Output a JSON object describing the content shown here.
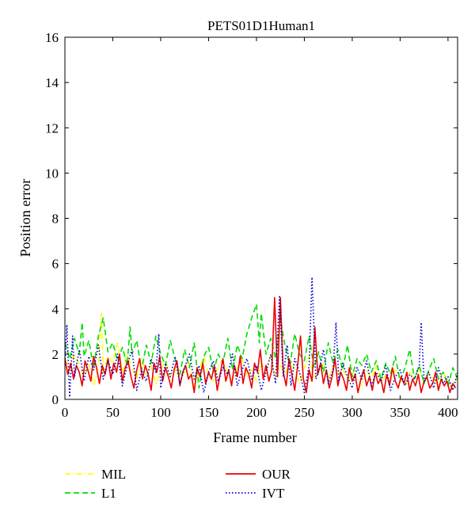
{
  "chart_data": {
    "type": "line",
    "title": "PETS01D1Human1",
    "xlabel": "Frame number",
    "ylabel": "Position error",
    "xlim": [
      0,
      410
    ],
    "ylim": [
      0,
      16
    ],
    "xticks": [
      0,
      50,
      100,
      150,
      200,
      250,
      300,
      350,
      400
    ],
    "yticks": [
      0,
      2,
      4,
      6,
      8,
      10,
      12,
      14,
      16
    ],
    "grid": false,
    "legend_position": "bottom",
    "series": [
      {
        "name": "MIL",
        "color": "#ffff00",
        "style": "dash-dot",
        "x": [
          0,
          5,
          10,
          15,
          20,
          25,
          30,
          35,
          38,
          40,
          45,
          50,
          55,
          60,
          65,
          70,
          75,
          80,
          85,
          90,
          95,
          100,
          105,
          110,
          115,
          120,
          125,
          130,
          135,
          140,
          145,
          150,
          155,
          160,
          165,
          170,
          175,
          180,
          185,
          190,
          195,
          200,
          205,
          210,
          215,
          220,
          225,
          230,
          235,
          240,
          245,
          250,
          255,
          260,
          265,
          270,
          275,
          280,
          285,
          290,
          295,
          300,
          305,
          310,
          315,
          320,
          325,
          330,
          335,
          340,
          345,
          350,
          355,
          360,
          365,
          370,
          375,
          380,
          385,
          390,
          395,
          400,
          405,
          410
        ],
        "y": [
          1.8,
          1.3,
          2.0,
          1.5,
          1.0,
          1.6,
          0.6,
          1.4,
          3.8,
          1.2,
          1.9,
          1.6,
          2.5,
          1.2,
          2.0,
          1.4,
          0.9,
          1.8,
          1.1,
          1.5,
          0.7,
          1.3,
          1.7,
          1.0,
          1.4,
          0.8,
          1.2,
          1.6,
          0.6,
          1.3,
          1.9,
          1.1,
          0.8,
          1.5,
          1.7,
          1.2,
          0.9,
          1.4,
          1.8,
          1.0,
          1.3,
          0.8,
          1.6,
          1.2,
          2.0,
          0.9,
          1.5,
          1.1,
          1.8,
          1.3,
          0.7,
          1.4,
          1.9,
          1.0,
          1.2,
          1.6,
          0.9,
          1.5,
          1.1,
          1.4,
          0.8,
          1.2,
          1.0,
          0.6,
          1.3,
          0.9,
          1.5,
          0.7,
          1.1,
          0.8,
          1.3,
          1.0,
          0.6,
          1.2,
          0.9,
          1.4,
          0.7,
          1.1,
          0.9,
          0.6,
          1.2,
          0.8,
          0.5,
          1.0
        ]
      },
      {
        "name": "L1",
        "color": "#00dd00",
        "style": "dash",
        "x": [
          0,
          5,
          10,
          15,
          18,
          20,
          25,
          30,
          35,
          40,
          45,
          50,
          55,
          60,
          65,
          68,
          70,
          75,
          80,
          85,
          90,
          95,
          100,
          105,
          110,
          115,
          120,
          125,
          130,
          135,
          140,
          145,
          150,
          155,
          160,
          165,
          170,
          175,
          180,
          185,
          190,
          195,
          200,
          203,
          205,
          210,
          215,
          220,
          225,
          230,
          235,
          240,
          245,
          250,
          255,
          260,
          265,
          270,
          275,
          280,
          285,
          290,
          295,
          300,
          305,
          310,
          315,
          320,
          325,
          330,
          335,
          340,
          345,
          350,
          355,
          360,
          365,
          370,
          375,
          380,
          385,
          390,
          395,
          400,
          405,
          410
        ],
        "y": [
          2.5,
          1.8,
          2.7,
          2.0,
          3.4,
          1.9,
          2.6,
          1.4,
          2.8,
          3.6,
          2.1,
          2.5,
          1.7,
          2.3,
          1.5,
          3.2,
          2.0,
          2.6,
          1.3,
          2.4,
          1.6,
          2.8,
          2.0,
          1.5,
          2.6,
          1.8,
          1.1,
          2.2,
          1.4,
          2.5,
          0.5,
          1.9,
          2.3,
          1.2,
          2.0,
          1.6,
          2.7,
          1.3,
          2.4,
          1.8,
          2.9,
          3.6,
          4.2,
          2.5,
          3.8,
          2.0,
          2.7,
          1.8,
          3.6,
          2.3,
          1.5,
          2.9,
          2.0,
          1.7,
          2.8,
          1.4,
          2.1,
          1.2,
          2.5,
          1.6,
          2.2,
          1.3,
          2.4,
          1.0,
          1.8,
          1.5,
          2.0,
          1.2,
          1.7,
          0.9,
          1.6,
          1.1,
          1.9,
          0.8,
          1.4,
          2.2,
          0.9,
          1.5,
          0.7,
          1.3,
          1.8,
          0.9,
          1.2,
          0.6,
          1.4,
          0.9
        ]
      },
      {
        "name": "OUR",
        "color": "#ee0000",
        "style": "solid",
        "x": [
          0,
          3,
          6,
          9,
          12,
          15,
          18,
          21,
          24,
          27,
          30,
          33,
          36,
          39,
          42,
          45,
          48,
          51,
          54,
          57,
          60,
          63,
          66,
          69,
          72,
          75,
          78,
          81,
          84,
          87,
          90,
          93,
          96,
          99,
          102,
          105,
          108,
          111,
          114,
          117,
          120,
          123,
          126,
          129,
          132,
          135,
          138,
          141,
          144,
          147,
          150,
          153,
          156,
          159,
          162,
          165,
          168,
          171,
          174,
          177,
          180,
          183,
          186,
          189,
          192,
          195,
          198,
          201,
          204,
          207,
          210,
          213,
          216,
          219,
          222,
          225,
          228,
          231,
          234,
          237,
          240,
          243,
          246,
          249,
          252,
          255,
          258,
          261,
          264,
          267,
          270,
          273,
          276,
          279,
          282,
          285,
          288,
          291,
          294,
          297,
          300,
          303,
          306,
          309,
          312,
          315,
          318,
          321,
          324,
          327,
          330,
          333,
          336,
          339,
          342,
          345,
          348,
          351,
          354,
          357,
          360,
          363,
          366,
          369,
          372,
          375,
          378,
          381,
          384,
          387,
          390,
          393,
          396,
          399,
          402,
          405,
          408
        ],
        "y": [
          1.8,
          1.1,
          1.6,
          0.9,
          1.5,
          1.2,
          0.6,
          1.7,
          1.3,
          0.8,
          1.9,
          1.4,
          0.7,
          1.5,
          1.1,
          1.8,
          0.9,
          1.6,
          1.2,
          2.0,
          0.8,
          1.4,
          1.7,
          1.0,
          0.5,
          1.3,
          1.8,
          0.9,
          1.5,
          1.1,
          0.4,
          1.6,
          1.2,
          1.9,
          0.8,
          1.4,
          1.0,
          0.5,
          1.3,
          1.7,
          0.6,
          1.2,
          1.5,
          0.9,
          1.1,
          0.3,
          1.4,
          1.0,
          1.6,
          0.7,
          1.2,
          0.9,
          1.5,
          0.4,
          1.1,
          1.8,
          0.8,
          1.3,
          0.6,
          1.5,
          1.0,
          1.9,
          0.7,
          1.4,
          1.1,
          0.5,
          1.6,
          1.2,
          2.2,
          0.9,
          1.5,
          0.8,
          1.3,
          4.5,
          1.0,
          4.5,
          1.2,
          0.6,
          1.8,
          1.1,
          0.4,
          1.5,
          2.8,
          0.9,
          0.3,
          1.3,
          0.8,
          3.2,
          1.1,
          1.6,
          0.7,
          1.3,
          0.5,
          1.0,
          1.8,
          0.6,
          1.2,
          0.9,
          0.4,
          1.4,
          0.8,
          1.1,
          0.3,
          0.9,
          1.3,
          0.6,
          1.0,
          0.4,
          1.2,
          0.7,
          0.9,
          0.3,
          1.1,
          0.6,
          1.4,
          0.8,
          0.5,
          1.0,
          0.7,
          1.2,
          0.4,
          0.9,
          0.6,
          1.1,
          0.3,
          0.8,
          1.0,
          0.5,
          0.7,
          1.2,
          0.4,
          0.9,
          0.6,
          0.8,
          0.3,
          0.7,
          0.5
        ]
      },
      {
        "name": "IVT",
        "color": "#0000cc",
        "style": "dot",
        "x": [
          0,
          2,
          5,
          8,
          10,
          15,
          20,
          25,
          30,
          35,
          40,
          45,
          50,
          55,
          60,
          65,
          70,
          75,
          80,
          85,
          90,
          95,
          98,
          100,
          105,
          110,
          115,
          120,
          125,
          130,
          135,
          140,
          145,
          150,
          155,
          160,
          165,
          170,
          175,
          180,
          185,
          190,
          195,
          200,
          205,
          210,
          215,
          220,
          224,
          228,
          232,
          236,
          240,
          245,
          250,
          255,
          258,
          262,
          266,
          270,
          275,
          280,
          283,
          286,
          290,
          295,
          300,
          305,
          310,
          315,
          320,
          325,
          330,
          335,
          340,
          345,
          350,
          355,
          360,
          365,
          370,
          372,
          375,
          380,
          385,
          390,
          395,
          400,
          405,
          410
        ],
        "y": [
          1.5,
          3.3,
          0.1,
          2.8,
          1.0,
          2.2,
          0.8,
          1.9,
          1.3,
          2.4,
          0.9,
          1.7,
          1.1,
          2.0,
          0.6,
          1.5,
          2.2,
          0.4,
          1.3,
          0.8,
          1.8,
          1.2,
          2.9,
          0.5,
          1.6,
          1.0,
          1.9,
          0.7,
          1.4,
          2.0,
          0.9,
          1.5,
          0.3,
          1.2,
          1.7,
          0.8,
          1.4,
          1.1,
          2.0,
          0.6,
          1.3,
          1.8,
          0.9,
          1.5,
          0.4,
          1.2,
          2.0,
          0.7,
          4.6,
          1.0,
          2.4,
          0.6,
          1.8,
          1.2,
          0.3,
          1.5,
          5.4,
          0.9,
          1.4,
          2.2,
          0.7,
          1.3,
          3.4,
          0.8,
          1.6,
          1.0,
          0.5,
          1.4,
          0.9,
          1.7,
          0.6,
          1.2,
          0.8,
          1.5,
          0.4,
          1.0,
          1.3,
          0.6,
          1.1,
          0.9,
          1.5,
          3.4,
          0.8,
          1.2,
          0.5,
          1.4,
          0.7,
          1.0,
          0.4,
          1.2
        ]
      }
    ]
  }
}
